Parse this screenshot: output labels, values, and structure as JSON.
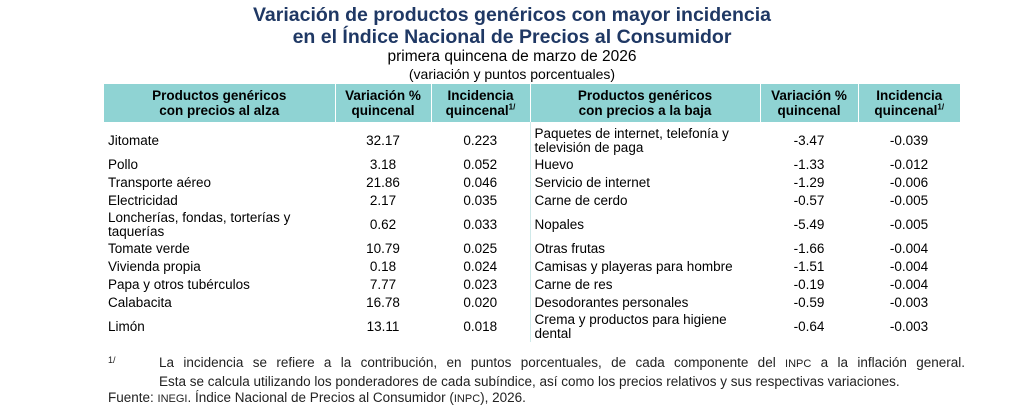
{
  "title_line1": "Variación de productos genéricos con mayor incidencia",
  "title_line2": "en el Índice Nacional de Precios al Consumidor",
  "subtitle": "primera quincena de marzo de 2026",
  "subtitle2": "(variación y puntos porcentuales)",
  "headers": {
    "up_products_l1": "Productos genéricos",
    "up_products_l2": "con precios al alza",
    "variation_l1": "Variación %",
    "variation_l2": "quincenal",
    "incidence_l1": "Incidencia",
    "incidence_l2": "quincenal",
    "incidence_note": "1/",
    "down_products_l1": "Productos genéricos",
    "down_products_l2": "con precios a la baja"
  },
  "rows": [
    {
      "up_name": "Jitomate",
      "up_var": "32.17",
      "up_inc": "0.223",
      "down_name": "Paquetes de internet, telefonía y televisión de paga",
      "down_var": "-3.47",
      "down_inc": "-0.039"
    },
    {
      "up_name": "Pollo",
      "up_var": "3.18",
      "up_inc": "0.052",
      "down_name": "Huevo",
      "down_var": "-1.33",
      "down_inc": "-0.012"
    },
    {
      "up_name": "Transporte aéreo",
      "up_var": "21.86",
      "up_inc": "0.046",
      "down_name": "Servicio de internet",
      "down_var": "-1.29",
      "down_inc": "-0.006"
    },
    {
      "up_name": "Electricidad",
      "up_var": "2.17",
      "up_inc": "0.035",
      "down_name": "Carne de cerdo",
      "down_var": "-0.57",
      "down_inc": "-0.005"
    },
    {
      "up_name": "Loncherías, fondas, torterías y taquerías",
      "up_var": "0.62",
      "up_inc": "0.033",
      "down_name": "Nopales",
      "down_var": "-5.49",
      "down_inc": "-0.005"
    },
    {
      "up_name": "Tomate verde",
      "up_var": "10.79",
      "up_inc": "0.025",
      "down_name": "Otras frutas",
      "down_var": "-1.66",
      "down_inc": "-0.004"
    },
    {
      "up_name": "Vivienda propia",
      "up_var": "0.18",
      "up_inc": "0.024",
      "down_name": "Camisas y playeras para hombre",
      "down_var": "-1.51",
      "down_inc": "-0.004"
    },
    {
      "up_name": "Papa y otros tubérculos",
      "up_var": "7.77",
      "up_inc": "0.023",
      "down_name": "Carne de res",
      "down_var": "-0.19",
      "down_inc": "-0.004"
    },
    {
      "up_name": "Calabacita",
      "up_var": "16.78",
      "up_inc": "0.020",
      "down_name": "Desodorantes personales",
      "down_var": "-0.59",
      "down_inc": "-0.003"
    },
    {
      "up_name": "Limón",
      "up_var": "13.11",
      "up_inc": "0.018",
      "down_name": "Crema y productos para higiene dental",
      "down_var": "-0.64",
      "down_inc": "-0.003"
    }
  ],
  "footnote_mark": "1/",
  "footnote_l1a": "La incidencia se refiere a la contribución, en puntos porcentuales, de cada componente del ",
  "footnote_l1_abbr": "INPC",
  "footnote_l1b": " a la inflación general.",
  "footnote_l2": "Esta se calcula utilizando los ponderadores de cada subíndice, así como los precios relativos y sus respectivas variaciones.",
  "source_label": "Fuente: ",
  "source_abbr1": "INEGI",
  "source_mid": ". Índice Nacional de Precios al Consumidor (",
  "source_abbr2": "INPC",
  "source_end": "), 2026."
}
